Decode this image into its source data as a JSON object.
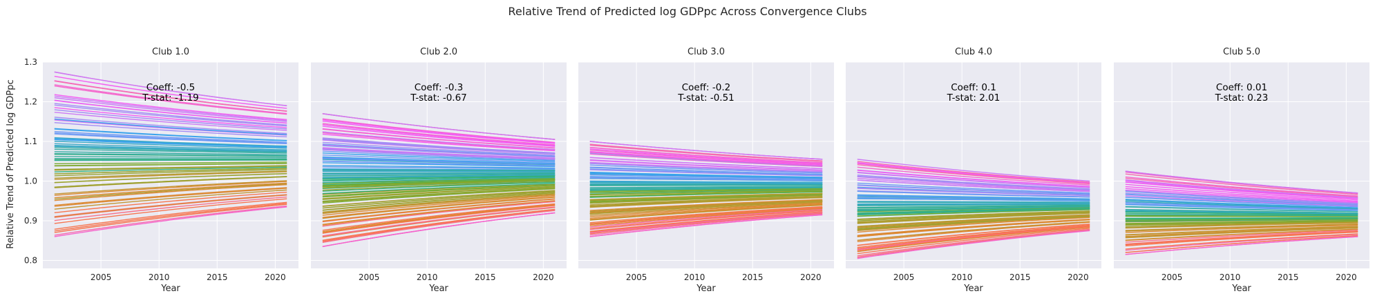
{
  "figure": {
    "suptitle": "Relative Trend of Predicted log GDPpc Across Convergence Clubs",
    "ylabel": "Relative Trend of Predicted log GDPpc",
    "background": "#eaeaf2",
    "grid_color": "#ffffff"
  },
  "chart_data": [
    {
      "type": "line",
      "title": "Club 1.0",
      "xlabel": "Year",
      "ylabel": "Relative Trend of Predicted log GDPpc",
      "xlim": [
        2000,
        2022
      ],
      "ylim": [
        0.78,
        1.3
      ],
      "xticks": [
        "2005",
        "2010",
        "2015",
        "2020"
      ],
      "yticks": [
        "0.8",
        "0.9",
        "1.0",
        "1.1",
        "1.2",
        "1.3"
      ],
      "grid": true,
      "annotation": [
        "Coeff: -0.5",
        "T-stat: -1.19"
      ],
      "series_summary": {
        "x_start": 2001,
        "x_end": 2021,
        "n_lines": 80,
        "start_max": 1.275,
        "start_min": 0.86,
        "end_max": 1.19,
        "end_min": 0.935
      }
    },
    {
      "type": "line",
      "title": "Club 2.0",
      "xlabel": "Year",
      "xlim": [
        2000,
        2022
      ],
      "ylim": [
        0.78,
        1.3
      ],
      "xticks": [
        "2005",
        "2010",
        "2015",
        "2020"
      ],
      "grid": true,
      "annotation": [
        "Coeff: -0.3",
        "T-stat: -0.67"
      ],
      "series_summary": {
        "x_start": 2001,
        "x_end": 2021,
        "n_lines": 120,
        "start_max": 1.17,
        "start_min": 0.835,
        "end_max": 1.105,
        "end_min": 0.92
      }
    },
    {
      "type": "line",
      "title": "Club 3.0",
      "xlabel": "Year",
      "xlim": [
        2000,
        2022
      ],
      "ylim": [
        0.78,
        1.3
      ],
      "xticks": [
        "2005",
        "2010",
        "2015",
        "2020"
      ],
      "grid": true,
      "annotation": [
        "Coeff: -0.2",
        "T-stat: -0.51"
      ],
      "series_summary": {
        "x_start": 2001,
        "x_end": 2021,
        "n_lines": 110,
        "start_max": 1.1,
        "start_min": 0.86,
        "end_max": 1.055,
        "end_min": 0.915
      }
    },
    {
      "type": "line",
      "title": "Club 4.0",
      "xlabel": "Year",
      "xlim": [
        2000,
        2022
      ],
      "ylim": [
        0.78,
        1.3
      ],
      "xticks": [
        "2005",
        "2010",
        "2015",
        "2020"
      ],
      "grid": true,
      "annotation": [
        "Coeff: 0.1",
        "T-stat: 2.01"
      ],
      "series_summary": {
        "x_start": 2001,
        "x_end": 2021,
        "n_lines": 90,
        "start_max": 1.055,
        "start_min": 0.805,
        "end_max": 1.0,
        "end_min": 0.875
      }
    },
    {
      "type": "line",
      "title": "Club 5.0",
      "xlabel": "Year",
      "xlim": [
        2000,
        2022
      ],
      "ylim": [
        0.78,
        1.3
      ],
      "xticks": [
        "2005",
        "2010",
        "2015",
        "2020"
      ],
      "grid": true,
      "annotation": [
        "Coeff: 0.01",
        "T-stat: 0.23"
      ],
      "series_summary": {
        "x_start": 2001,
        "x_end": 2021,
        "n_lines": 80,
        "start_max": 1.025,
        "start_min": 0.815,
        "end_max": 0.97,
        "end_min": 0.86
      }
    }
  ],
  "palette": [
    "#f77189",
    "#f7754f",
    "#dc8932",
    "#c39532",
    "#ae9d31",
    "#97a431",
    "#77ab31",
    "#33b07a",
    "#35ad9c",
    "#36ada4",
    "#38a9c5",
    "#3ba3ec",
    "#6e9af4",
    "#a48cf4",
    "#cc7af4",
    "#f45cf2",
    "#f565cc",
    "#f66bad"
  ]
}
